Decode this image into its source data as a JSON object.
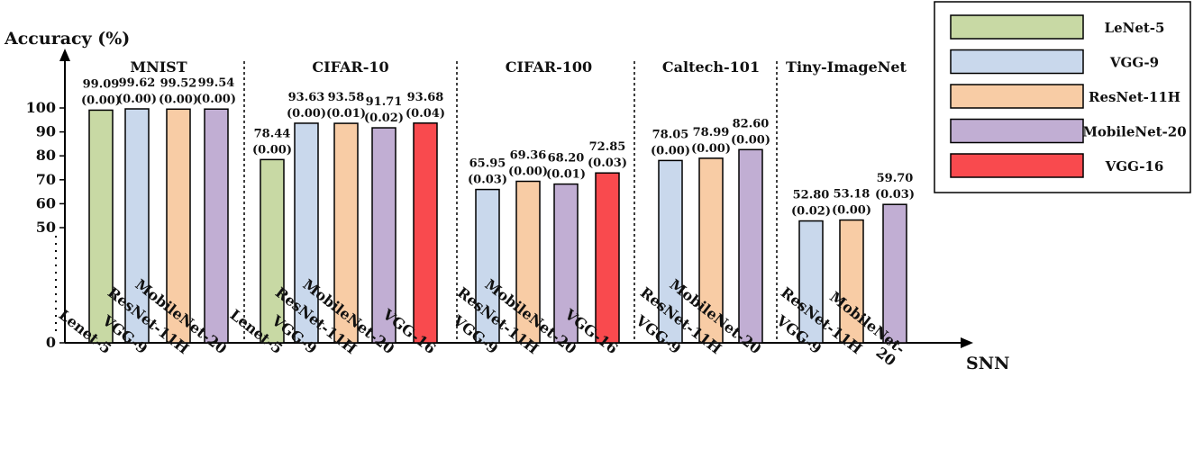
{
  "chart_data": {
    "type": "bar",
    "ylabel": "Accuracy (%)",
    "xlabel": "SNN",
    "y_ticks": [
      "100",
      "90",
      "80",
      "70",
      "60",
      "50",
      "0"
    ],
    "legend": [
      {
        "label": "LeNet-5",
        "color": "#c8d9a4"
      },
      {
        "label": "VGG-9",
        "color": "#c9d8ec"
      },
      {
        "label": "ResNet-11H",
        "color": "#f8cca5"
      },
      {
        "label": "MobileNet-20",
        "color": "#c1aed3"
      },
      {
        "label": "VGG-16",
        "color": "#f94a4e"
      }
    ],
    "groups": [
      {
        "name": "MNIST",
        "bars": [
          {
            "category": "Lenet-5",
            "model": "LeNet-5",
            "value": 99.09,
            "label": "99.09",
            "std": "(0.00)"
          },
          {
            "category": "VGG-9",
            "model": "VGG-9",
            "value": 99.62,
            "label": "99.62",
            "std": "(0.00)"
          },
          {
            "category": "ResNet-11H",
            "model": "ResNet-11H",
            "value": 99.52,
            "label": "99.52",
            "std": "(0.00)"
          },
          {
            "category": "MobileNet-20",
            "model": "MobileNet-20",
            "value": 99.54,
            "label": "99.54",
            "std": "(0.00)"
          }
        ]
      },
      {
        "name": "CIFAR-10",
        "bars": [
          {
            "category": "Lenet-5",
            "model": "LeNet-5",
            "value": 78.44,
            "label": "78.44",
            "std": "(0.00)"
          },
          {
            "category": "VGG-9",
            "model": "VGG-9",
            "value": 93.63,
            "label": "93.63",
            "std": "(0.00)"
          },
          {
            "category": "ResNet-11H",
            "model": "ResNet-11H",
            "value": 93.58,
            "label": "93.58",
            "std": "(0.01)"
          },
          {
            "category": "MobileNet-20",
            "model": "MobileNet-20",
            "value": 91.71,
            "label": "91.71",
            "std": "(0.02)"
          },
          {
            "category": "VGG-16",
            "model": "VGG-16",
            "value": 93.68,
            "label": "93.68",
            "std": "(0.04)"
          }
        ]
      },
      {
        "name": "CIFAR-100",
        "bars": [
          {
            "category": "VGG-9",
            "model": "VGG-9",
            "value": 65.95,
            "label": "65.95",
            "std": "(0.03)"
          },
          {
            "category": "ResNet-11H",
            "model": "ResNet-11H",
            "value": 69.36,
            "label": "69.36",
            "std": "(0.00)"
          },
          {
            "category": "MobileNet-20",
            "model": "MobileNet-20",
            "value": 68.2,
            "label": "68.20",
            "std": "(0.01)"
          },
          {
            "category": "VGG-16",
            "model": "VGG-16",
            "value": 72.85,
            "label": "72.85",
            "std": "(0.03)"
          }
        ]
      },
      {
        "name": "Caltech-101",
        "bars": [
          {
            "category": "VGG-9",
            "model": "VGG-9",
            "value": 78.05,
            "label": "78.05",
            "std": "(0.00)"
          },
          {
            "category": "ResNet-11H",
            "model": "ResNet-11H",
            "value": 78.99,
            "label": "78.99",
            "std": "(0.00)"
          },
          {
            "category": "MobileNet-20",
            "model": "MobileNet-20",
            "value": 82.6,
            "label": "82.60",
            "std": "(0.00)"
          }
        ]
      },
      {
        "name": "Tiny-ImageNet",
        "bars": [
          {
            "category": "VGG-9",
            "model": "VGG-9",
            "value": 52.8,
            "label": "52.80",
            "std": "(0.02)"
          },
          {
            "category": "ResNet-11H",
            "model": "ResNet-11H",
            "value": 53.18,
            "label": "53.18",
            "std": "(0.00)"
          },
          {
            "category": "MobileNet-\n20",
            "model": "MobileNet-20",
            "value": 59.7,
            "label": "59.70",
            "std": "(0.03)"
          }
        ]
      }
    ]
  }
}
